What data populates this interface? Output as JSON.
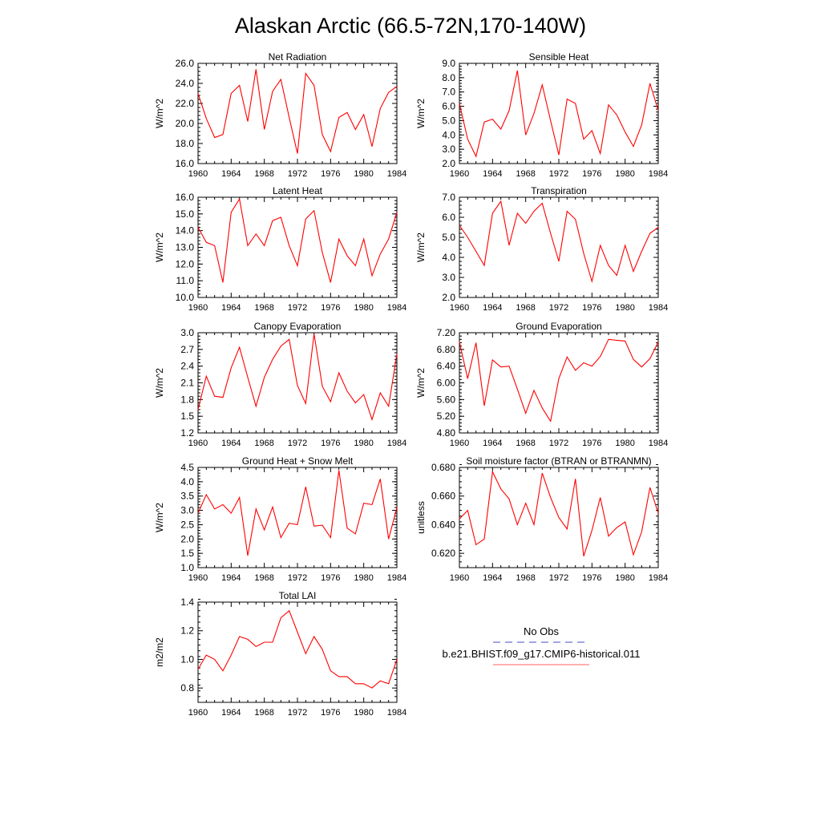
{
  "title": "Alaskan Arctic (66.5-72N,170-140W)",
  "chart_data": [
    {
      "type": "line",
      "title": "Net Radiation",
      "ylabel": "W/m^2",
      "xlim": [
        1960,
        1984
      ],
      "ylim": [
        16.0,
        26.0
      ],
      "yticks": [
        16.0,
        18.0,
        20.0,
        22.0,
        24.0,
        26.0
      ],
      "ytick_labels": [
        "16.0",
        "18.0",
        "20.0",
        "22.0",
        "24.0",
        "26.0"
      ],
      "xticks": [
        1960,
        1964,
        1968,
        1972,
        1976,
        1980,
        1984
      ],
      "x": [
        1960,
        1961,
        1962,
        1963,
        1964,
        1965,
        1966,
        1967,
        1968,
        1969,
        1970,
        1971,
        1972,
        1973,
        1974,
        1975,
        1976,
        1977,
        1978,
        1979,
        1980,
        1981,
        1982,
        1983,
        1984
      ],
      "series": [
        {
          "name": "b.e21.BHIST.f09_g17.CMIP6-historical.011",
          "color": "#ff0000",
          "values": [
            23.0,
            20.5,
            18.6,
            18.9,
            23.0,
            23.8,
            20.2,
            25.4,
            19.4,
            23.2,
            24.4,
            20.6,
            17.0,
            25.0,
            23.8,
            18.9,
            17.2,
            20.6,
            21.1,
            19.4,
            20.9,
            17.7,
            21.5,
            23.1,
            23.7
          ]
        }
      ]
    },
    {
      "type": "line",
      "title": "Sensible Heat",
      "ylabel": "W/m^2",
      "xlim": [
        1960,
        1984
      ],
      "ylim": [
        2.0,
        9.0
      ],
      "yticks": [
        2.0,
        3.0,
        4.0,
        5.0,
        6.0,
        7.0,
        8.0,
        9.0
      ],
      "ytick_labels": [
        "2.0",
        "3.0",
        "4.0",
        "5.0",
        "6.0",
        "7.0",
        "8.0",
        "9.0"
      ],
      "xticks": [
        1960,
        1964,
        1968,
        1972,
        1976,
        1980,
        1984
      ],
      "x": [
        1960,
        1961,
        1962,
        1963,
        1964,
        1965,
        1966,
        1967,
        1968,
        1969,
        1970,
        1971,
        1972,
        1973,
        1974,
        1975,
        1976,
        1977,
        1978,
        1979,
        1980,
        1981,
        1982,
        1983,
        1984
      ],
      "series": [
        {
          "name": "b.e21.BHIST.f09_g17.CMIP6-historical.011",
          "color": "#ff0000",
          "values": [
            6.2,
            3.7,
            2.5,
            4.9,
            5.1,
            4.4,
            5.7,
            8.5,
            4.0,
            5.5,
            7.5,
            5.0,
            2.6,
            6.5,
            6.2,
            3.7,
            4.3,
            2.7,
            6.1,
            5.4,
            4.2,
            3.2,
            4.7,
            7.6,
            5.7
          ]
        }
      ]
    },
    {
      "type": "line",
      "title": "Latent Heat",
      "ylabel": "W/m^2",
      "xlim": [
        1960,
        1984
      ],
      "ylim": [
        10.0,
        16.0
      ],
      "yticks": [
        10.0,
        11.0,
        12.0,
        13.0,
        14.0,
        15.0,
        16.0
      ],
      "ytick_labels": [
        "10.0",
        "11.0",
        "12.0",
        "13.0",
        "14.0",
        "15.0",
        "16.0"
      ],
      "xticks": [
        1960,
        1964,
        1968,
        1972,
        1976,
        1980,
        1984
      ],
      "x": [
        1960,
        1961,
        1962,
        1963,
        1964,
        1965,
        1966,
        1967,
        1968,
        1969,
        1970,
        1971,
        1972,
        1973,
        1974,
        1975,
        1976,
        1977,
        1978,
        1979,
        1980,
        1981,
        1982,
        1983,
        1984
      ],
      "series": [
        {
          "name": "b.e21.BHIST.f09_g17.CMIP6-historical.011",
          "color": "#ff0000",
          "values": [
            14.2,
            13.3,
            13.1,
            10.9,
            15.1,
            15.9,
            13.1,
            13.8,
            13.1,
            14.6,
            14.8,
            13.1,
            11.9,
            14.7,
            15.2,
            12.7,
            10.9,
            13.5,
            12.5,
            11.9,
            13.5,
            11.3,
            12.6,
            13.5,
            15.1
          ]
        }
      ]
    },
    {
      "type": "line",
      "title": "Transpiration",
      "ylabel": "W/m^2",
      "xlim": [
        1960,
        1984
      ],
      "ylim": [
        2.0,
        7.0
      ],
      "yticks": [
        2.0,
        3.0,
        4.0,
        5.0,
        6.0,
        7.0
      ],
      "ytick_labels": [
        "2.0",
        "3.0",
        "4.0",
        "5.0",
        "6.0",
        "7.0"
      ],
      "xticks": [
        1960,
        1964,
        1968,
        1972,
        1976,
        1980,
        1984
      ],
      "x": [
        1960,
        1961,
        1962,
        1963,
        1964,
        1965,
        1966,
        1967,
        1968,
        1969,
        1970,
        1971,
        1972,
        1973,
        1974,
        1975,
        1976,
        1977,
        1978,
        1979,
        1980,
        1981,
        1982,
        1983,
        1984
      ],
      "series": [
        {
          "name": "b.e21.BHIST.f09_g17.CMIP6-historical.011",
          "color": "#ff0000",
          "values": [
            5.6,
            5.0,
            4.3,
            3.6,
            6.2,
            6.8,
            4.6,
            6.2,
            5.7,
            6.3,
            6.7,
            5.2,
            3.8,
            6.3,
            5.9,
            4.2,
            2.8,
            4.6,
            3.6,
            3.1,
            4.6,
            3.3,
            4.3,
            5.2,
            5.5
          ]
        }
      ]
    },
    {
      "type": "line",
      "title": "Canopy Evaporation",
      "ylabel": "W/m^2",
      "xlim": [
        1960,
        1984
      ],
      "ylim": [
        1.2,
        3.0
      ],
      "yticks": [
        1.2,
        1.5,
        1.8,
        2.1,
        2.4,
        2.7,
        3.0
      ],
      "ytick_labels": [
        "1.2",
        "1.5",
        "1.8",
        "2.1",
        "2.4",
        "2.7",
        "3.0"
      ],
      "xticks": [
        1960,
        1964,
        1968,
        1972,
        1976,
        1980,
        1984
      ],
      "x": [
        1960,
        1961,
        1962,
        1963,
        1964,
        1965,
        1966,
        1967,
        1968,
        1969,
        1970,
        1971,
        1972,
        1973,
        1974,
        1975,
        1976,
        1977,
        1978,
        1979,
        1980,
        1981,
        1982,
        1983,
        1984
      ],
      "series": [
        {
          "name": "b.e21.BHIST.f09_g17.CMIP6-historical.011",
          "color": "#ff0000",
          "values": [
            1.62,
            2.22,
            1.86,
            1.84,
            2.37,
            2.74,
            2.2,
            1.68,
            2.2,
            2.52,
            2.76,
            2.88,
            2.05,
            1.73,
            2.98,
            2.04,
            1.76,
            2.28,
            1.95,
            1.74,
            1.89,
            1.44,
            1.92,
            1.68,
            2.62
          ]
        }
      ]
    },
    {
      "type": "line",
      "title": "Ground Evaporation",
      "ylabel": "W/m^2",
      "xlim": [
        1960,
        1984
      ],
      "ylim": [
        4.8,
        7.2
      ],
      "yticks": [
        4.8,
        5.2,
        5.6,
        6.0,
        6.4,
        6.8,
        7.2
      ],
      "ytick_labels": [
        "4.80",
        "5.20",
        "5.60",
        "6.00",
        "6.40",
        "6.80",
        "7.20"
      ],
      "xticks": [
        1960,
        1964,
        1968,
        1972,
        1976,
        1980,
        1984
      ],
      "x": [
        1960,
        1961,
        1962,
        1963,
        1964,
        1965,
        1966,
        1967,
        1968,
        1969,
        1970,
        1971,
        1972,
        1973,
        1974,
        1975,
        1976,
        1977,
        1978,
        1979,
        1980,
        1981,
        1982,
        1983,
        1984
      ],
      "series": [
        {
          "name": "b.e21.BHIST.f09_g17.CMIP6-historical.011",
          "color": "#ff0000",
          "values": [
            6.98,
            6.1,
            6.96,
            5.45,
            6.55,
            6.38,
            6.4,
            5.85,
            5.27,
            5.82,
            5.4,
            5.08,
            6.1,
            6.62,
            6.3,
            6.48,
            6.4,
            6.63,
            7.04,
            7.02,
            7.0,
            6.56,
            6.38,
            6.58,
            6.98
          ]
        }
      ]
    },
    {
      "type": "line",
      "title": "Ground Heat + Snow Melt",
      "ylabel": "W/m^2",
      "xlim": [
        1960,
        1984
      ],
      "ylim": [
        1.0,
        4.5
      ],
      "yticks": [
        1.0,
        1.5,
        2.0,
        2.5,
        3.0,
        3.5,
        4.0,
        4.5
      ],
      "ytick_labels": [
        "1.0",
        "1.5",
        "2.0",
        "2.5",
        "3.0",
        "3.5",
        "4.0",
        "4.5"
      ],
      "xticks": [
        1960,
        1964,
        1968,
        1972,
        1976,
        1980,
        1984
      ],
      "x": [
        1960,
        1961,
        1962,
        1963,
        1964,
        1965,
        1966,
        1967,
        1968,
        1969,
        1970,
        1971,
        1972,
        1973,
        1974,
        1975,
        1976,
        1977,
        1978,
        1979,
        1980,
        1981,
        1982,
        1983,
        1984
      ],
      "series": [
        {
          "name": "b.e21.BHIST.f09_g17.CMIP6-historical.011",
          "color": "#ff0000",
          "values": [
            2.9,
            3.55,
            3.05,
            3.2,
            2.9,
            3.45,
            1.42,
            3.05,
            2.32,
            3.12,
            2.05,
            2.55,
            2.5,
            3.82,
            2.45,
            2.48,
            2.05,
            4.4,
            2.38,
            2.18,
            3.25,
            3.2,
            4.1,
            2.0,
            3.1
          ]
        }
      ]
    },
    {
      "type": "line",
      "title": "Soil moisture factor (BTRAN or BTRANMN)",
      "ylabel": "unitless",
      "xlim": [
        1960,
        1984
      ],
      "ylim": [
        0.61,
        0.68
      ],
      "yticks": [
        0.62,
        0.64,
        0.66,
        0.68
      ],
      "ytick_labels": [
        "0.620",
        "0.640",
        "0.660",
        "0.680"
      ],
      "xticks": [
        1960,
        1964,
        1968,
        1972,
        1976,
        1980,
        1984
      ],
      "x": [
        1960,
        1961,
        1962,
        1963,
        1964,
        1965,
        1966,
        1967,
        1968,
        1969,
        1970,
        1971,
        1972,
        1973,
        1974,
        1975,
        1976,
        1977,
        1978,
        1979,
        1980,
        1981,
        1982,
        1983,
        1984
      ],
      "series": [
        {
          "name": "b.e21.BHIST.f09_g17.CMIP6-historical.011",
          "color": "#ff0000",
          "values": [
            0.644,
            0.65,
            0.626,
            0.63,
            0.677,
            0.665,
            0.658,
            0.64,
            0.655,
            0.64,
            0.676,
            0.659,
            0.645,
            0.637,
            0.672,
            0.618,
            0.636,
            0.659,
            0.632,
            0.638,
            0.642,
            0.619,
            0.635,
            0.666,
            0.648
          ]
        }
      ]
    },
    {
      "type": "line",
      "title": "Total LAI",
      "ylabel": "m2/m2",
      "xlim": [
        1960,
        1984
      ],
      "ylim": [
        0.7,
        1.4
      ],
      "yticks": [
        0.8,
        1.0,
        1.2,
        1.4
      ],
      "ytick_labels": [
        "0.8",
        "1.0",
        "1.2",
        "1.4"
      ],
      "xticks": [
        1960,
        1964,
        1968,
        1972,
        1976,
        1980,
        1984
      ],
      "x": [
        1960,
        1961,
        1962,
        1963,
        1964,
        1965,
        1966,
        1967,
        1968,
        1969,
        1970,
        1971,
        1972,
        1973,
        1974,
        1975,
        1976,
        1977,
        1978,
        1979,
        1980,
        1981,
        1982,
        1983,
        1984
      ],
      "series": [
        {
          "name": "b.e21.BHIST.f09_g17.CMIP6-historical.011",
          "color": "#ff0000",
          "values": [
            0.93,
            1.03,
            1.0,
            0.92,
            1.03,
            1.16,
            1.14,
            1.09,
            1.12,
            1.12,
            1.29,
            1.34,
            1.19,
            1.04,
            1.16,
            1.07,
            0.92,
            0.88,
            0.88,
            0.83,
            0.83,
            0.8,
            0.85,
            0.83,
            1.0
          ]
        }
      ]
    }
  ],
  "legend": {
    "items": [
      {
        "label": "No Obs",
        "color": "#4a4ac8",
        "dash": true
      },
      {
        "label": "b.e21.BHIST.f09_g17.CMIP6-historical.011",
        "color": "#ff6060",
        "dash": false
      }
    ]
  }
}
